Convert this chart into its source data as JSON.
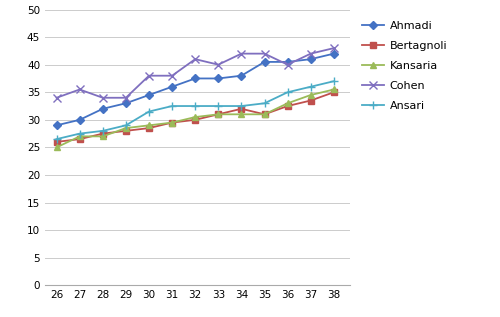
{
  "x": [
    26,
    27,
    28,
    29,
    30,
    31,
    32,
    33,
    34,
    35,
    36,
    37,
    38
  ],
  "Ahmadi": [
    29,
    30,
    32,
    33,
    34.5,
    36,
    37.5,
    37.5,
    38,
    40.5,
    40.5,
    41,
    42
  ],
  "Bertagnoli": [
    26,
    26.5,
    27.5,
    28,
    28.5,
    29.5,
    30,
    31,
    32,
    31,
    32.5,
    33.5,
    35
  ],
  "Kansaria": [
    25,
    27,
    27,
    28.5,
    29,
    29.5,
    30.5,
    31,
    31,
    31,
    33,
    34.5,
    35.5
  ],
  "Cohen": [
    34,
    35.5,
    34,
    34,
    38,
    38,
    41,
    40,
    42,
    42,
    40,
    42,
    43
  ],
  "Ansari": [
    26.5,
    27.5,
    28,
    29,
    31.5,
    32.5,
    32.5,
    32.5,
    32.5,
    33,
    35,
    36,
    37
  ],
  "colors": {
    "Ahmadi": "#4472c4",
    "Bertagnoli": "#c0504d",
    "Kansaria": "#9bbb59",
    "Cohen": "#7f6fbf",
    "Ansari": "#4bacc6"
  },
  "markers": {
    "Ahmadi": "D",
    "Bertagnoli": "s",
    "Kansaria": "^",
    "Cohen": "x",
    "Ansari": "+"
  },
  "marker_sizes": {
    "Ahmadi": 4,
    "Bertagnoli": 4,
    "Kansaria": 4,
    "Cohen": 6,
    "Ansari": 6
  },
  "ylim": [
    0,
    50
  ],
  "yticks": [
    0,
    5,
    10,
    15,
    20,
    25,
    30,
    35,
    40,
    45,
    50
  ],
  "xlim": [
    25.5,
    38.7
  ],
  "xticks": [
    26,
    27,
    28,
    29,
    30,
    31,
    32,
    33,
    34,
    35,
    36,
    37,
    38
  ]
}
